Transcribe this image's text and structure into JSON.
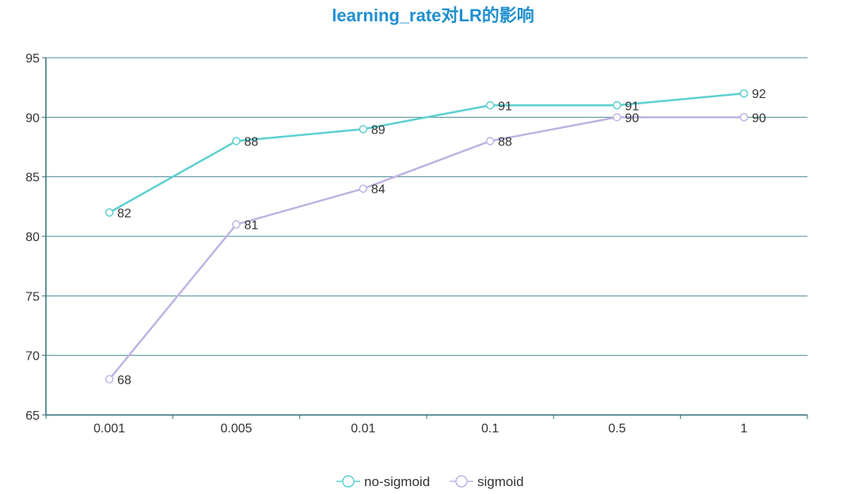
{
  "chart_data": {
    "type": "line",
    "title": "learning_rate对LR的影响",
    "categories": [
      "0.001",
      "0.005",
      "0.01",
      "0.1",
      "0.5",
      "1"
    ],
    "series": [
      {
        "name": "no-sigmoid",
        "values": [
          82,
          88,
          89,
          91,
          91,
          92
        ],
        "color": "#5ccfcf"
      },
      {
        "name": "sigmoid",
        "values": [
          68,
          81,
          84,
          88,
          90,
          90
        ],
        "color": "#bfb2e2"
      }
    ],
    "ylim": [
      65,
      95
    ],
    "yticks": [
      65,
      70,
      75,
      80,
      85,
      90,
      95
    ],
    "grid": true,
    "legend": "bottom-center",
    "axis_color": "#2f6f7a",
    "grid_color": "#4a8a92"
  }
}
